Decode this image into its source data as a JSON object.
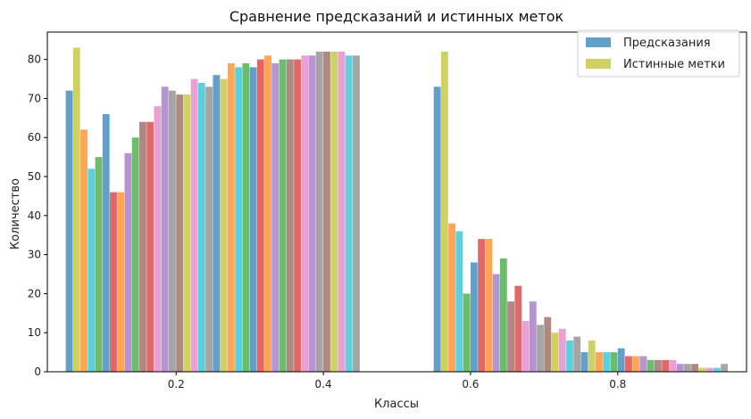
{
  "chart_data": {
    "type": "bar",
    "title": "Сравнение предсказаний и истинных меток",
    "xlabel": "Классы",
    "ylabel": "Количество",
    "xlim": [
      0.025,
      0.975
    ],
    "ylim": [
      0,
      87
    ],
    "xticks": [
      0.2,
      0.4,
      0.6,
      0.8
    ],
    "yticks": [
      0,
      10,
      20,
      30,
      40,
      50,
      60,
      70,
      80
    ],
    "grid": false,
    "legend_position": "top-right",
    "bar_alpha": 0.7,
    "palette": [
      "#1f77b4",
      "#ff7f0e",
      "#2ca02c",
      "#d62728",
      "#9467bd",
      "#8c564b",
      "#e377c2",
      "#7f7f7f",
      "#bcbd22",
      "#17becf"
    ],
    "series": [
      {
        "name": "Предсказания",
        "color": "#1f77b4",
        "x": [
          0.06,
          0.08,
          0.1,
          0.12,
          0.14,
          0.16,
          0.18,
          0.2,
          0.22,
          0.24,
          0.26,
          0.28,
          0.3,
          0.32,
          0.34,
          0.36,
          0.38,
          0.4,
          0.42,
          0.44,
          0.56,
          0.58,
          0.6,
          0.62,
          0.64,
          0.66,
          0.68,
          0.7,
          0.72,
          0.74,
          0.76,
          0.78,
          0.8,
          0.82,
          0.84,
          0.86,
          0.88,
          0.9,
          0.92,
          0.94
        ],
        "values": [
          72,
          62,
          55,
          46,
          56,
          64,
          68,
          72,
          71,
          74,
          76,
          79,
          79,
          80,
          79,
          80,
          81,
          82,
          82,
          81,
          73,
          38,
          20,
          34,
          25,
          18,
          13,
          12,
          10,
          8,
          5,
          5,
          5,
          4,
          4,
          3,
          3,
          2,
          1,
          1
        ]
      },
      {
        "name": "Истинные метки",
        "color": "#bcbd22",
        "x": [
          0.06,
          0.08,
          0.1,
          0.12,
          0.14,
          0.16,
          0.18,
          0.2,
          0.22,
          0.24,
          0.26,
          0.28,
          0.3,
          0.32,
          0.34,
          0.36,
          0.38,
          0.4,
          0.42,
          0.44,
          0.56,
          0.58,
          0.6,
          0.62,
          0.64,
          0.66,
          0.68,
          0.7,
          0.72,
          0.74,
          0.76,
          0.78,
          0.8,
          0.82,
          0.84,
          0.86,
          0.88,
          0.9,
          0.92,
          0.94
        ],
        "values": [
          83,
          52,
          66,
          46,
          60,
          64,
          73,
          71,
          75,
          73,
          75,
          78,
          78,
          81,
          80,
          80,
          81,
          82,
          82,
          81,
          82,
          36,
          28,
          34,
          29,
          22,
          18,
          14,
          11,
          9,
          8,
          5,
          6,
          4,
          3,
          3,
          2,
          2,
          1,
          2
        ]
      }
    ]
  }
}
